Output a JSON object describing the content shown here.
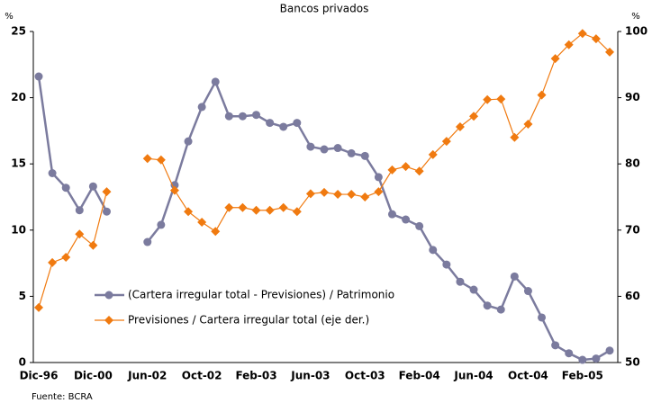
{
  "chart_data": {
    "type": "line",
    "title": "Bancos privados",
    "y_label": "%",
    "y2_label": "%",
    "source": "Fuente: BCRA",
    "categories": [
      "Dic-96",
      null,
      null,
      null,
      "Dic-00",
      null,
      null,
      null,
      "Jun-02",
      null,
      null,
      null,
      "Oct-02",
      null,
      null,
      null,
      "Feb-03",
      null,
      null,
      null,
      "Jun-03",
      null,
      null,
      null,
      "Oct-03",
      null,
      null,
      null,
      "Feb-04",
      null,
      null,
      null,
      "Jun-04",
      null,
      null,
      null,
      "Oct-04",
      null,
      null,
      null,
      "Feb-05",
      null,
      null
    ],
    "series": [
      {
        "name": "(Cartera irregular total - Previsiones) / Patrimonio",
        "color": "#7b7b9e",
        "marker": "circle",
        "values": [
          21.6,
          14.3,
          13.2,
          11.5,
          13.3,
          11.4,
          null,
          null,
          9.1,
          10.4,
          13.4,
          16.7,
          19.3,
          21.2,
          18.6,
          18.6,
          18.7,
          18.1,
          17.8,
          18.1,
          16.3,
          16.1,
          16.2,
          15.8,
          15.6,
          14.0,
          11.2,
          10.8,
          10.3,
          8.5,
          7.4,
          6.1,
          5.5,
          4.3,
          4.0,
          6.5,
          5.4,
          3.4,
          1.3,
          0.7,
          0.2,
          0.3,
          0.9
        ]
      },
      {
        "name": "Previsiones / Cartera irregular total (eje der.)",
        "color": "#f07a10",
        "marker": "diamond",
        "axis": "y2",
        "values": [
          58.3,
          65.1,
          65.9,
          69.4,
          67.7,
          75.8,
          null,
          null,
          80.8,
          80.6,
          76.0,
          72.8,
          71.2,
          69.8,
          73.4,
          73.4,
          73.0,
          73.0,
          73.4,
          72.8,
          75.5,
          75.7,
          75.4,
          75.4,
          75.0,
          75.8,
          79.1,
          79.6,
          78.9,
          81.4,
          83.4,
          85.6,
          87.2,
          89.7,
          89.8,
          84.0,
          86.0,
          90.4,
          95.9,
          98.0,
          99.7,
          98.9,
          96.9
        ]
      }
    ],
    "ylim": [
      0,
      25
    ],
    "yticks": [
      0,
      5,
      10,
      15,
      20,
      25
    ],
    "y2lim": [
      50,
      100
    ],
    "y2ticks": [
      50,
      60,
      70,
      80,
      90,
      100
    ],
    "legend": "lower-left"
  }
}
